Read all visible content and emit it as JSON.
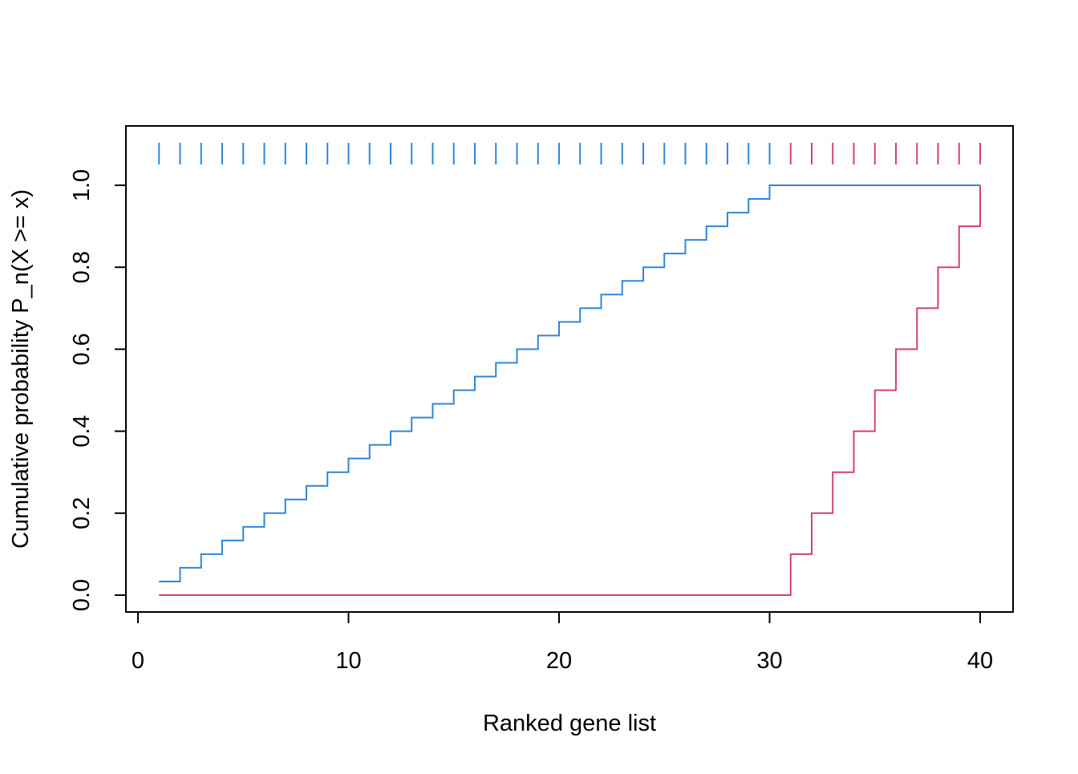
{
  "chart_data": {
    "type": "line",
    "title": "",
    "xlabel": "Ranked gene list",
    "ylabel": "Cumulative probability P_n(X >= x)",
    "xlim": [
      0,
      40
    ],
    "ylim": [
      0,
      1
    ],
    "x_ticks": [
      0,
      10,
      20,
      30,
      40
    ],
    "x_tick_labels": [
      "0",
      "10",
      "20",
      "30",
      "40"
    ],
    "y_ticks": [
      0,
      0.2,
      0.4,
      0.6,
      0.8,
      1.0
    ],
    "y_tick_labels": [
      "0.0",
      "0.2",
      "0.4",
      "0.6",
      "0.8",
      "1.0"
    ],
    "grid": false,
    "legend": "none",
    "series": [
      {
        "color": "#2F86D9",
        "step": "post",
        "x": [
          1,
          2,
          3,
          4,
          5,
          6,
          7,
          8,
          9,
          10,
          11,
          12,
          13,
          14,
          15,
          16,
          17,
          18,
          19,
          20,
          21,
          22,
          23,
          24,
          25,
          26,
          27,
          28,
          29,
          30,
          40
        ],
        "y": [
          0.0333,
          0.0667,
          0.1,
          0.1333,
          0.1667,
          0.2,
          0.2333,
          0.2667,
          0.3,
          0.3333,
          0.3667,
          0.4,
          0.4333,
          0.4667,
          0.5,
          0.5333,
          0.5667,
          0.6,
          0.6333,
          0.6667,
          0.7,
          0.7333,
          0.7667,
          0.8,
          0.8333,
          0.8667,
          0.9,
          0.9333,
          0.9667,
          1.0,
          1.0
        ]
      },
      {
        "color": "#D6416A",
        "step": "post",
        "x": [
          1,
          31,
          32,
          33,
          34,
          35,
          36,
          37,
          38,
          39,
          40
        ],
        "y": [
          0,
          0.1,
          0.2,
          0.3,
          0.4,
          0.5,
          0.6,
          0.7,
          0.8,
          0.9,
          1.0
        ]
      }
    ],
    "rug": {
      "blue_positions": [
        1,
        2,
        3,
        4,
        5,
        6,
        7,
        8,
        9,
        10,
        11,
        12,
        13,
        14,
        15,
        16,
        17,
        18,
        19,
        20,
        21,
        22,
        23,
        24,
        25,
        26,
        27,
        28,
        29,
        30
      ],
      "red_positions": [
        31,
        32,
        33,
        34,
        35,
        36,
        37,
        38,
        39,
        40
      ],
      "blue_color": "#2F86D9",
      "red_color": "#D6416A"
    }
  }
}
